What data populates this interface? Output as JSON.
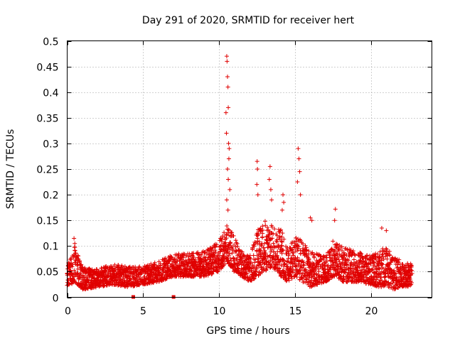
{
  "chart_data": {
    "type": "scatter",
    "title": "Day 291 of 2020, SRMTID for receiver hert",
    "xlabel": "GPS time / hours",
    "ylabel": "SRMTID / TECUs",
    "xlim": [
      0,
      24
    ],
    "ylim": [
      0,
      0.5
    ],
    "x_ticks": [
      0,
      5,
      10,
      15,
      20
    ],
    "x_tick_labels": [
      "0",
      "5",
      "10",
      "15",
      "20"
    ],
    "y_ticks": [
      0,
      0.05,
      0.1,
      0.15,
      0.2,
      0.25,
      0.3,
      0.35,
      0.4,
      0.45,
      0.5
    ],
    "y_tick_labels": [
      "0",
      "0.05",
      "0.1",
      "0.15",
      "0.2",
      "0.25",
      "0.3",
      "0.35",
      "0.4",
      "0.45",
      "0.5"
    ],
    "grid": true,
    "marker": "plus",
    "color": "#e00000",
    "gap_markers_x": [
      4.35,
      7.0
    ],
    "envelope": {
      "x": [
        0.0,
        0.5,
        1.0,
        2.0,
        3.0,
        4.0,
        5.0,
        6.0,
        7.0,
        8.0,
        9.0,
        10.0,
        10.5,
        11.0,
        11.5,
        12.0,
        12.5,
        13.0,
        13.5,
        14.0,
        14.5,
        15.0,
        15.5,
        16.0,
        17.0,
        17.5,
        18.0,
        19.0,
        20.0,
        20.5,
        21.0,
        21.5,
        22.0,
        22.7
      ],
      "low": [
        0.02,
        0.03,
        0.015,
        0.02,
        0.025,
        0.02,
        0.025,
        0.03,
        0.04,
        0.04,
        0.04,
        0.05,
        0.07,
        0.05,
        0.04,
        0.03,
        0.04,
        0.05,
        0.06,
        0.04,
        0.03,
        0.04,
        0.03,
        0.02,
        0.03,
        0.04,
        0.03,
        0.03,
        0.025,
        0.02,
        0.02,
        0.015,
        0.02,
        0.02
      ],
      "high": [
        0.06,
        0.1,
        0.06,
        0.055,
        0.065,
        0.06,
        0.06,
        0.07,
        0.085,
        0.085,
        0.09,
        0.11,
        0.14,
        0.12,
        0.09,
        0.08,
        0.13,
        0.15,
        0.14,
        0.14,
        0.1,
        0.12,
        0.11,
        0.09,
        0.08,
        0.11,
        0.1,
        0.09,
        0.08,
        0.09,
        0.1,
        0.08,
        0.07,
        0.065
      ]
    },
    "spikes": [
      {
        "x": 10.5,
        "y": 0.47
      },
      {
        "x": 10.52,
        "y": 0.46
      },
      {
        "x": 10.55,
        "y": 0.43
      },
      {
        "x": 10.58,
        "y": 0.41
      },
      {
        "x": 10.6,
        "y": 0.37
      },
      {
        "x": 10.45,
        "y": 0.36
      },
      {
        "x": 10.48,
        "y": 0.32
      },
      {
        "x": 10.62,
        "y": 0.3
      },
      {
        "x": 10.66,
        "y": 0.29
      },
      {
        "x": 10.64,
        "y": 0.27
      },
      {
        "x": 10.55,
        "y": 0.25
      },
      {
        "x": 10.6,
        "y": 0.23
      },
      {
        "x": 10.7,
        "y": 0.21
      },
      {
        "x": 10.5,
        "y": 0.19
      },
      {
        "x": 10.58,
        "y": 0.17
      },
      {
        "x": 12.5,
        "y": 0.265
      },
      {
        "x": 12.52,
        "y": 0.25
      },
      {
        "x": 12.48,
        "y": 0.22
      },
      {
        "x": 12.55,
        "y": 0.2
      },
      {
        "x": 13.35,
        "y": 0.255
      },
      {
        "x": 13.3,
        "y": 0.23
      },
      {
        "x": 13.4,
        "y": 0.21
      },
      {
        "x": 13.45,
        "y": 0.19
      },
      {
        "x": 14.2,
        "y": 0.2
      },
      {
        "x": 14.25,
        "y": 0.185
      },
      {
        "x": 14.15,
        "y": 0.17
      },
      {
        "x": 15.2,
        "y": 0.29
      },
      {
        "x": 15.25,
        "y": 0.27
      },
      {
        "x": 15.3,
        "y": 0.245
      },
      {
        "x": 15.15,
        "y": 0.225
      },
      {
        "x": 15.35,
        "y": 0.2
      },
      {
        "x": 16.0,
        "y": 0.155
      },
      {
        "x": 16.1,
        "y": 0.15
      },
      {
        "x": 17.65,
        "y": 0.172
      },
      {
        "x": 17.6,
        "y": 0.15
      },
      {
        "x": 20.7,
        "y": 0.135
      },
      {
        "x": 21.0,
        "y": 0.13
      },
      {
        "x": 0.45,
        "y": 0.115
      },
      {
        "x": 0.5,
        "y": 0.105
      }
    ]
  }
}
